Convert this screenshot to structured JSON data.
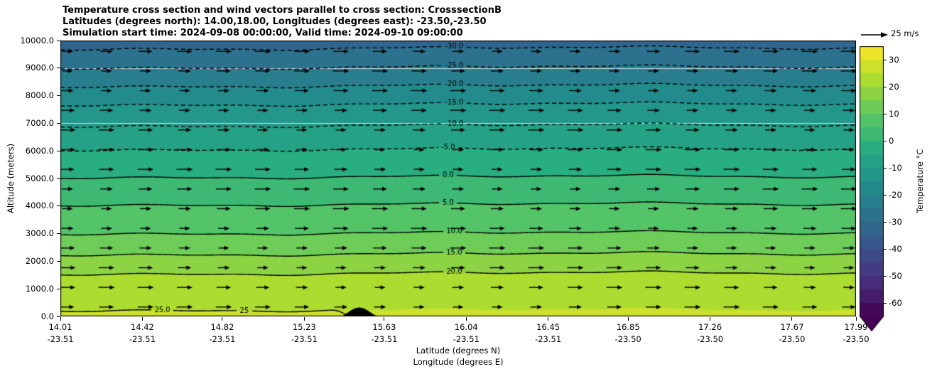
{
  "title": {
    "line1": "Temperature cross section and wind vectors parallel to cross section: CrosssectionB",
    "line2": "Latitudes (degrees north): 14.00,18.00, Longitudes (degrees east): -23.50,-23.50",
    "line3": "Simulation start time: 2024-09-08 00:00:00, Valid time: 2024-09-10 09:00:00"
  },
  "axes": {
    "ylabel": "Altitude (meters)",
    "xlabel_line1": "Latitude (degrees N)",
    "xlabel_line2": "Longitude (degrees E)",
    "y_ticks": [
      "0.0",
      "1000.0",
      "2000.0",
      "3000.0",
      "4000.0",
      "5000.0",
      "6000.0",
      "7000.0",
      "8000.0",
      "9000.0",
      "10000.0"
    ],
    "x_ticks": [
      {
        "lat": "14.01",
        "lon": "-23.51"
      },
      {
        "lat": "14.42",
        "lon": "-23.51"
      },
      {
        "lat": "14.82",
        "lon": "-23.51"
      },
      {
        "lat": "15.23",
        "lon": "-23.51"
      },
      {
        "lat": "15.63",
        "lon": "-23.51"
      },
      {
        "lat": "16.04",
        "lon": "-23.51"
      },
      {
        "lat": "16.45",
        "lon": "-23.51"
      },
      {
        "lat": "16.85",
        "lon": "-23.50"
      },
      {
        "lat": "17.26",
        "lon": "-23.50"
      },
      {
        "lat": "17.67",
        "lon": "-23.50"
      },
      {
        "lat": "17.99",
        "lon": "-23.50"
      }
    ]
  },
  "quiver_key": {
    "label": "25 m/s",
    "value_ms": 25
  },
  "colorbar": {
    "label": "Temperature °C",
    "ticks": [
      30,
      20,
      10,
      0,
      -10,
      -20,
      -30,
      -40,
      -50,
      -60
    ],
    "range": [
      -65,
      35
    ],
    "extend": "min"
  },
  "chart_data": {
    "type": "heatmap",
    "subtype": "filled-contour-vertical-cross-section-with-wind-vectors",
    "title": "Temperature cross section and wind vectors parallel to cross section: CrosssectionB",
    "x_range": [
      14.01,
      17.99
    ],
    "y_range": [
      0,
      10000
    ],
    "xlabel": "Latitude (degrees N) / Longitude (degrees E)",
    "ylabel": "Altitude (meters)",
    "fill_step_c": 5,
    "colormap": "viridis",
    "colormap_stops": [
      "#440154",
      "#472d7b",
      "#3b528b",
      "#2c728e",
      "#21918c",
      "#28ae80",
      "#5ec962",
      "#addc30",
      "#fde725"
    ],
    "temperature_profile": [
      [
        0,
        29
      ],
      [
        240,
        25
      ],
      [
        1560,
        20
      ],
      [
        2260,
        15
      ],
      [
        3020,
        10
      ],
      [
        4060,
        5
      ],
      [
        5060,
        0
      ],
      [
        6060,
        -5
      ],
      [
        6920,
        -10
      ],
      [
        7690,
        -15
      ],
      [
        8360,
        -20
      ],
      [
        9030,
        -25
      ],
      [
        9720,
        -30
      ],
      [
        10000,
        -31.8
      ]
    ],
    "white_gridlines_alt": [
      9000,
      7000
    ],
    "contours": [
      {
        "value": -30,
        "altitude_m": 9720,
        "style": "dashed",
        "labels": [
          {
            "lat": 15.98,
            "text": "-30.0"
          }
        ]
      },
      {
        "value": -25,
        "altitude_m": 9030,
        "style": "dashed",
        "labels": [
          {
            "lat": 15.98,
            "text": "-25.0"
          }
        ]
      },
      {
        "value": -20,
        "altitude_m": 8360,
        "style": "dashed",
        "labels": [
          {
            "lat": 15.98,
            "text": "-20.0"
          }
        ]
      },
      {
        "value": -15,
        "altitude_m": 7690,
        "style": "dashed",
        "labels": [
          {
            "lat": 15.98,
            "text": "-15.0"
          }
        ]
      },
      {
        "value": -10,
        "altitude_m": 6920,
        "style": "dashed",
        "labels": [
          {
            "lat": 15.98,
            "text": "-10.0"
          }
        ]
      },
      {
        "value": -5,
        "altitude_m": 6060,
        "style": "dashed",
        "labels": [
          {
            "lat": 15.95,
            "text": "-5.0"
          }
        ]
      },
      {
        "value": 0,
        "altitude_m": 5060,
        "style": "solid",
        "labels": [
          {
            "lat": 15.95,
            "text": "0.0"
          }
        ]
      },
      {
        "value": 5,
        "altitude_m": 4060,
        "style": "solid",
        "labels": [
          {
            "lat": 15.95,
            "text": "5.0"
          }
        ]
      },
      {
        "value": 10,
        "altitude_m": 3020,
        "style": "solid",
        "labels": [
          {
            "lat": 15.98,
            "text": "10.0"
          }
        ]
      },
      {
        "value": 15,
        "altitude_m": 2260,
        "style": "solid",
        "labels": [
          {
            "lat": 15.98,
            "text": "15.0"
          }
        ]
      },
      {
        "value": 20,
        "altitude_m": 1560,
        "style": "solid",
        "labels": [
          {
            "lat": 15.98,
            "text": "20.0"
          }
        ]
      },
      {
        "value": 25,
        "altitude_m": 240,
        "style": "solid",
        "lat_end": 15.45,
        "labels": [
          {
            "lat": 14.52,
            "text": "25.0"
          },
          {
            "lat": 14.93,
            "text": "25"
          }
        ]
      }
    ],
    "wind": {
      "rows": 14,
      "cols": 21,
      "alt_min_m": 340,
      "alt_max_m": 9610,
      "direction": "uniform, parallel to cross section (+x)",
      "reference_ms": 25
    },
    "terrain": {
      "lat_range": [
        15.41,
        15.6
      ],
      "peak_height_m": 320
    }
  }
}
